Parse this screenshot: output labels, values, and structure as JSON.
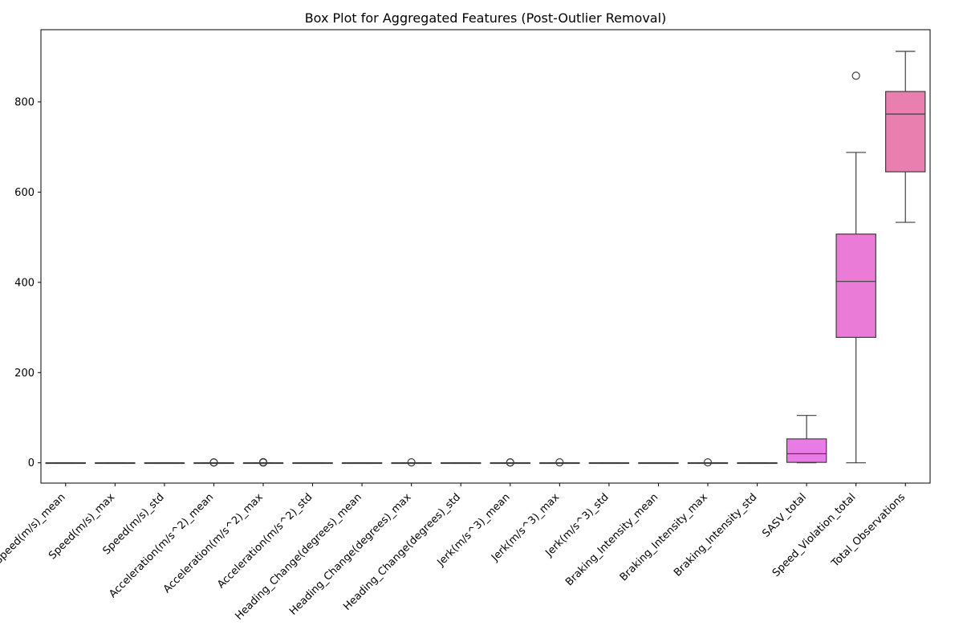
{
  "chart_data": {
    "type": "box",
    "title": "Box Plot for Aggregated Features (Post-Outlier Removal)",
    "xlabel": "",
    "ylabel": "",
    "ylim": [
      -45,
      960
    ],
    "yticks": [
      0,
      200,
      400,
      600,
      800
    ],
    "grid": false,
    "legend": "none",
    "categories": [
      "Speed(m/s)_mean",
      "Speed(m/s)_max",
      "Speed(m/s)_std",
      "Acceleration(m/s^2)_mean",
      "Acceleration(m/s^2)_max",
      "Acceleration(m/s^2)_std",
      "Heading_Change(degrees)_mean",
      "Heading_Change(degrees)_max",
      "Heading_Change(degrees)_std",
      "Jerk(m/s^3)_mean",
      "Jerk(m/s^3)_max",
      "Jerk(m/s^3)_std",
      "Braking_Intensity_mean",
      "Braking_Intensity_max",
      "Braking_Intensity_std",
      "SASV_total",
      "Speed_Violation_total",
      "Total_Observations"
    ],
    "boxes": [
      {
        "min": 0,
        "q1": 0,
        "median": 0,
        "q3": 0,
        "max": 0,
        "outliers": [],
        "color": "#ea96a3"
      },
      {
        "min": 0,
        "q1": 0,
        "median": 0,
        "q3": 0,
        "max": 0,
        "outliers": [],
        "color": "#e7a15a"
      },
      {
        "min": 0,
        "q1": 0,
        "median": 0,
        "q3": 0,
        "max": 0,
        "outliers": [],
        "color": "#cfa84e"
      },
      {
        "min": 0,
        "q1": 0,
        "median": 0,
        "q3": 0,
        "max": 0,
        "outliers": [
          0.5,
          1
        ],
        "color": "#b6ae4c"
      },
      {
        "min": 0,
        "q1": 0,
        "median": 0,
        "q3": 0,
        "max": 0,
        "outliers": [
          0.5,
          1,
          1.5
        ],
        "color": "#98b54d"
      },
      {
        "min": 0,
        "q1": 0,
        "median": 0,
        "q3": 0,
        "max": 0,
        "outliers": [],
        "color": "#6bbc4f"
      },
      {
        "min": 0,
        "q1": 0,
        "median": 0,
        "q3": 0,
        "max": 0,
        "outliers": [],
        "color": "#4fba7b"
      },
      {
        "min": 0,
        "q1": 0,
        "median": 0,
        "q3": 0,
        "max": 0,
        "outliers": [
          1
        ],
        "color": "#50b798"
      },
      {
        "min": 0,
        "q1": 0,
        "median": 0,
        "q3": 0,
        "max": 0,
        "outliers": [],
        "color": "#52b5ad"
      },
      {
        "min": 0,
        "q1": 0,
        "median": 0,
        "q3": 0,
        "max": 0,
        "outliers": [
          0.5,
          1
        ],
        "color": "#54b3c0"
      },
      {
        "min": 0,
        "q1": 0,
        "median": 0,
        "q3": 0,
        "max": 0,
        "outliers": [
          1
        ],
        "color": "#56b0d5"
      },
      {
        "min": 0,
        "q1": 0,
        "median": 0,
        "q3": 0,
        "max": 0,
        "outliers": [],
        "color": "#70aaee"
      },
      {
        "min": 0,
        "q1": 0,
        "median": 0,
        "q3": 0,
        "max": 0,
        "outliers": [],
        "color": "#a49cf4"
      },
      {
        "min": 0,
        "q1": 0,
        "median": 0,
        "q3": 0,
        "max": 0,
        "outliers": [
          1
        ],
        "color": "#c28df4"
      },
      {
        "min": 0,
        "q1": 0,
        "median": 0,
        "q3": 0,
        "max": 0,
        "outliers": [],
        "color": "#db84f0"
      },
      {
        "min": 0,
        "q1": 1,
        "median": 20,
        "q3": 53,
        "max": 105,
        "outliers": [],
        "color": "#e97be6"
      },
      {
        "min": 0,
        "q1": 278,
        "median": 402,
        "q3": 507,
        "max": 688,
        "outliers": [
          858
        ],
        "color": "#ea7bd7"
      },
      {
        "min": 533,
        "q1": 645,
        "median": 773,
        "q3": 823,
        "max": 912,
        "outliers": [],
        "color": "#e87fae"
      }
    ]
  }
}
